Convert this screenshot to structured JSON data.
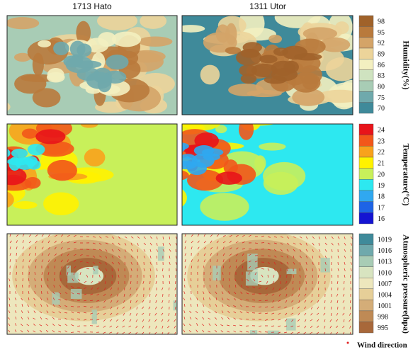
{
  "columns": [
    "1713 Hato",
    "1311 Utor"
  ],
  "rows": [
    {
      "label": "Humidity(%)",
      "ticks": [
        98,
        95,
        92,
        89,
        86,
        83,
        80,
        75,
        70
      ],
      "colors": [
        "#a0622a",
        "#b97a3c",
        "#d4a468",
        "#ecd49a",
        "#f3efc0",
        "#cfe3c0",
        "#a8ccb5",
        "#6fa9ac",
        "#3f8a9a"
      ]
    },
    {
      "label": "Temperature(°C)",
      "ticks": [
        24,
        23,
        22,
        21,
        20,
        19,
        18,
        17,
        16
      ],
      "colors": [
        "#e8141a",
        "#f2571a",
        "#f8a21c",
        "#fff200",
        "#c8f05a",
        "#2de8f0",
        "#30a8f0",
        "#1e64e6",
        "#1414d2"
      ]
    },
    {
      "label": "Atmospheric pressure(hpa)",
      "ticks": [
        1019,
        1016,
        1013,
        1010,
        1007,
        1004,
        1001,
        998,
        995
      ],
      "colors": [
        "#3f8a9a",
        "#6fa9ac",
        "#a8ccb5",
        "#d8e4c0",
        "#ede7bd",
        "#e6cf98",
        "#d4ad78",
        "#bf8a55",
        "#a8683a"
      ]
    }
  ],
  "legend": "Wind direction"
}
